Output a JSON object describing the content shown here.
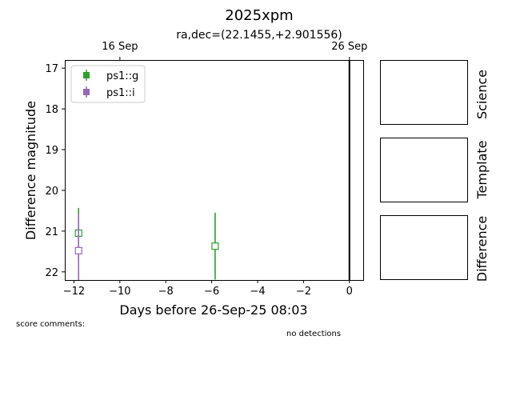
{
  "title": "2025xpm",
  "subtitle": "ra,dec=(22.1455,+2.901556)",
  "chart_data": {
    "type": "scatter",
    "xlabel": "Days before 26-Sep-25 08:03",
    "ylabel": "Difference magnitude",
    "xlim": [
      -12.4,
      0.6
    ],
    "ylim": [
      22.2,
      16.8
    ],
    "y_inverted": true,
    "x_ticks": [
      -12,
      -10,
      -8,
      -6,
      -4,
      -2,
      0
    ],
    "x_tick_labels": [
      "−12",
      "−10",
      "−8",
      "−6",
      "−4",
      "−2",
      "0"
    ],
    "y_ticks": [
      17,
      18,
      19,
      20,
      21,
      22
    ],
    "y_tick_labels": [
      "17",
      "18",
      "19",
      "20",
      "21",
      "22"
    ],
    "top_ticks": [
      {
        "x": -10,
        "label": "16 Sep"
      },
      {
        "x": 0,
        "label": "26 Sep"
      }
    ],
    "vertical_line_x": 0,
    "legend_position": "top-left",
    "grid": false,
    "series": [
      {
        "name": "ps1::g",
        "color": "#2ca02c",
        "points": [
          {
            "x": -11.8,
            "y": 21.05,
            "yerr": 0.62
          },
          {
            "x": -5.85,
            "y": 21.37,
            "yerr": 0.82
          }
        ]
      },
      {
        "name": "ps1::i",
        "color": "#9467bd",
        "points": [
          {
            "x": -11.8,
            "y": 21.48,
            "yerr": 0.9
          }
        ]
      }
    ]
  },
  "panels": [
    {
      "label": "Science"
    },
    {
      "label": "Template"
    },
    {
      "label": "Difference"
    }
  ],
  "score_comments": "score comments:",
  "detections_note": "no detections"
}
